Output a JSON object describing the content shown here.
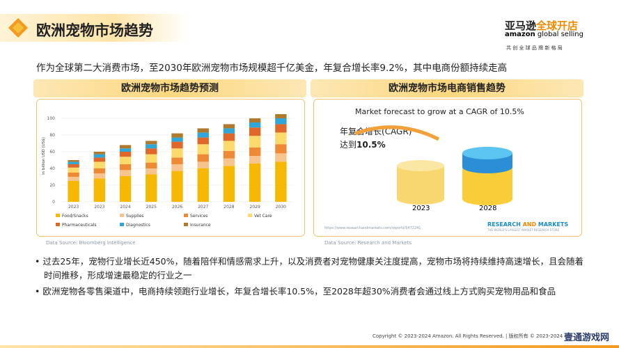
{
  "header": {
    "title": "欧洲宠物市场趋势",
    "logo_cn": "亚马逊",
    "logo_cn2": "全球开店",
    "logo_en": "amazon",
    "logo_en2": "global selling",
    "slogan": "共 创 全 球 品 牌 新 格 局"
  },
  "subtitle": "作为全球第二大消费市场，至2030年欧洲宠物市场规模超千亿美金，年复合增长率9.2%，其中电商份额持续走高",
  "left_panel": {
    "title": "欧洲宠物市场趋势预测",
    "source": "Data Source: Bloomberg Intelligence"
  },
  "chart_data": {
    "type": "stacked_bar",
    "y_label": "in billion USD (US$)",
    "categories": [
      "2023",
      "2023",
      "2024",
      "2025",
      "2026",
      "2027",
      "2028",
      "2029",
      "2030"
    ],
    "ylim": [
      0,
      110
    ],
    "yticks": [
      0,
      20,
      40,
      60,
      80,
      100
    ],
    "grid": true,
    "series": [
      {
        "name": "Food/Snacks",
        "color": "#f6b800",
        "values": [
          25,
          28,
          31,
          33,
          37,
          40,
          43,
          46,
          48
        ]
      },
      {
        "name": "Supplies",
        "color": "#f7c48e",
        "values": [
          5,
          6,
          7,
          7,
          8,
          8,
          9,
          9,
          10
        ]
      },
      {
        "name": "Services",
        "color": "#ee8a35",
        "values": [
          5,
          6,
          7,
          7,
          8,
          9,
          9,
          10,
          11
        ]
      },
      {
        "name": "Vet Care",
        "color": "#fbd96a",
        "values": [
          6,
          8,
          9,
          10,
          11,
          12,
          12,
          14,
          14
        ]
      },
      {
        "name": "Pharmaceuticals",
        "color": "#e0662a",
        "values": [
          4,
          5,
          6,
          7,
          8,
          8,
          9,
          10,
          10
        ]
      },
      {
        "name": "Diagnostics",
        "color": "#2fa7d8",
        "values": [
          3,
          4,
          4,
          5,
          5,
          6,
          6,
          6,
          7
        ]
      },
      {
        "name": "Insurance",
        "color": "#b07a2e",
        "values": [
          2,
          3,
          4,
          4,
          5,
          5,
          5,
          5,
          5
        ]
      }
    ]
  },
  "right_panel": {
    "title": "欧洲宠物市场电商销售趋势",
    "heading": "Market forecast to grow at a CAGR of 10.5%",
    "cagr_label": "年复合增长(CAGR)",
    "cagr_prefix": "达到",
    "cagr_value": "10.5%",
    "year_a": "2023",
    "year_b": "2028",
    "brand_a": "RESEARCH",
    "brand_and": " AND ",
    "brand_b": "MARKETS",
    "brand_tag": "THE WORLD'S LARGEST MARKET RESEARCH STORE",
    "url": "https://www.researchandmarkets.com/reports/5472241",
    "source": "Data Source: Research and Markets"
  },
  "bullets": [
    "过去25年，宠物行业增长近450%，随着陪伴和情感需求上升，以及消费者对宠物健康关注度提高，宠物市场将持续维持高速增长，且会随着时间推移，形成增速最稳定的行业之一",
    "欧洲宠物各零售渠道中，电商持续领跑行业增长，年复合增长率10.5%，至2028年超30%消费者会通过线上方式购买宠物用品和食品"
  ],
  "footer": "Copyright © 2023-2024 Amazon. All Rights Reserved. | 版权所有 © 2023-2024",
  "watermark": "壹通游戏网"
}
